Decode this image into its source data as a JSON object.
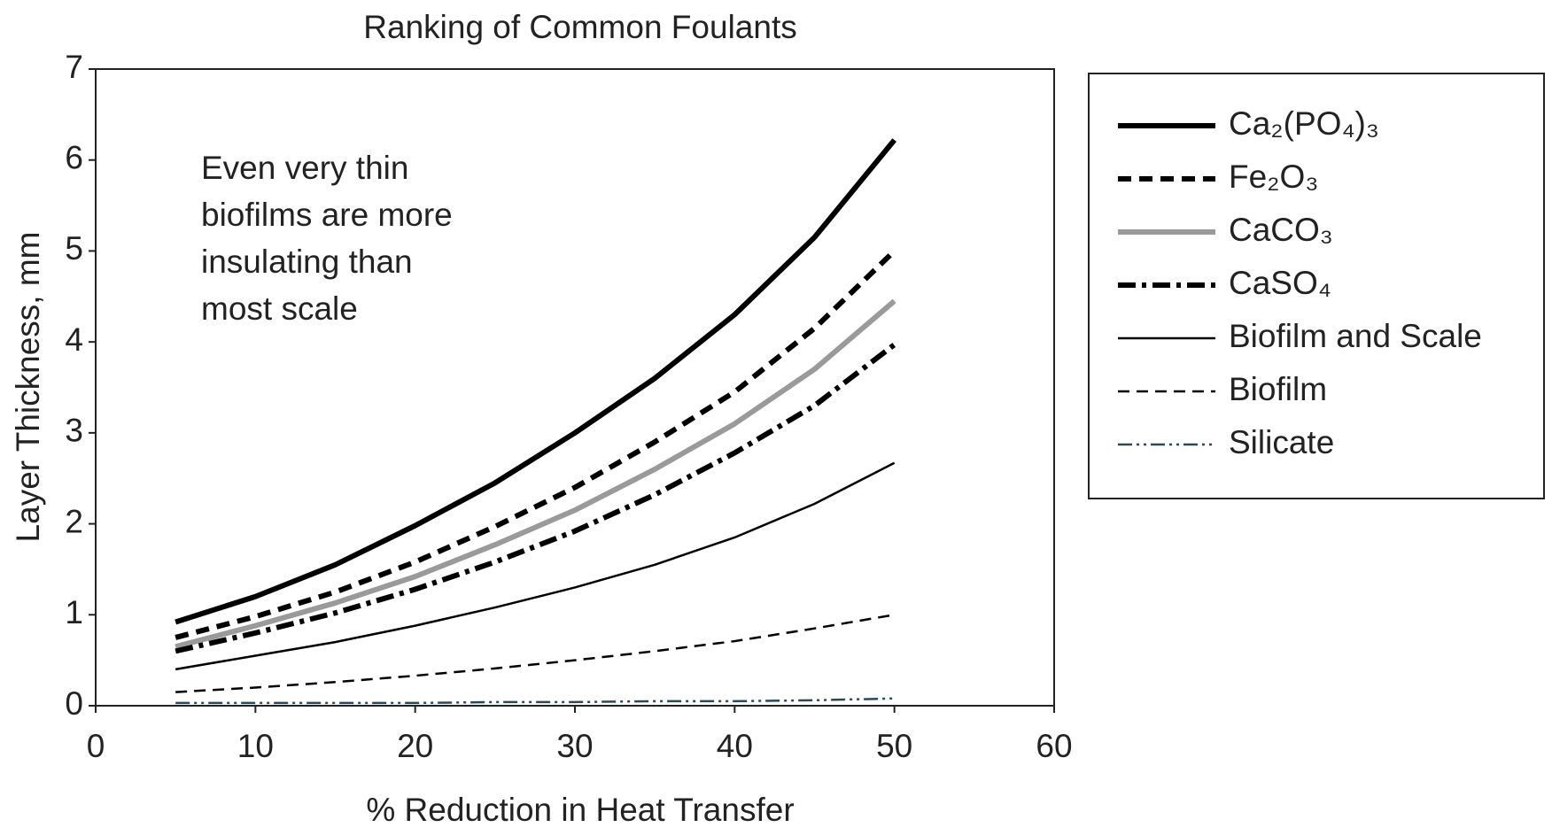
{
  "chart_data": {
    "type": "line",
    "title": "Ranking of Common Foulants",
    "x_label": "% Reduction in Heat Transfer",
    "y_label": "Layer Thickness, mm",
    "annotation": [
      "Even very thin",
      "biofilms are more",
      "insulating than",
      "most scale"
    ],
    "x": [
      5,
      10,
      15,
      20,
      25,
      30,
      35,
      40,
      45,
      50
    ],
    "series": [
      {
        "name": "Ca₂(PO₄)₃",
        "color": "#000000",
        "line_style": "solid",
        "weight": "bold",
        "values": [
          0.92,
          1.2,
          1.55,
          1.98,
          2.45,
          3.0,
          3.6,
          4.3,
          5.15,
          6.22
        ]
      },
      {
        "name": "Fe₂O₃",
        "color": "#000000",
        "line_style": "dashed",
        "weight": "bold",
        "values": [
          0.75,
          0.98,
          1.25,
          1.58,
          1.97,
          2.4,
          2.9,
          3.45,
          4.15,
          5.0
        ]
      },
      {
        "name": "CaCO₃",
        "color": "#9a9a9a",
        "line_style": "solid",
        "weight": "bold",
        "values": [
          0.65,
          0.88,
          1.13,
          1.42,
          1.77,
          2.15,
          2.6,
          3.1,
          3.7,
          4.45
        ]
      },
      {
        "name": "CaSO₄",
        "color": "#000000",
        "line_style": "dashdot",
        "weight": "bold",
        "values": [
          0.6,
          0.8,
          1.02,
          1.28,
          1.58,
          1.92,
          2.32,
          2.78,
          3.3,
          3.97
        ]
      },
      {
        "name": "Biofilm and Scale",
        "color": "#000000",
        "line_style": "solid",
        "weight": "normal",
        "values": [
          0.4,
          0.55,
          0.7,
          0.88,
          1.08,
          1.3,
          1.55,
          1.85,
          2.22,
          2.67
        ]
      },
      {
        "name": "Biofilm",
        "color": "#000000",
        "line_style": "dashed",
        "weight": "normal",
        "values": [
          0.15,
          0.2,
          0.26,
          0.33,
          0.41,
          0.5,
          0.6,
          0.71,
          0.85,
          1.0
        ]
      },
      {
        "name": "Silicate",
        "color": "#2a4a5a",
        "line_style": "dashdot",
        "weight": "normal",
        "values": [
          0.03,
          0.03,
          0.03,
          0.03,
          0.04,
          0.04,
          0.05,
          0.05,
          0.06,
          0.08
        ]
      }
    ],
    "xlim": [
      0,
      60
    ],
    "xticks": [
      0,
      10,
      20,
      30,
      40,
      50,
      60
    ],
    "ylim": [
      0,
      7
    ],
    "yticks": [
      0,
      1,
      2,
      3,
      4,
      5,
      6,
      7
    ],
    "grid": false,
    "legend": "right"
  }
}
